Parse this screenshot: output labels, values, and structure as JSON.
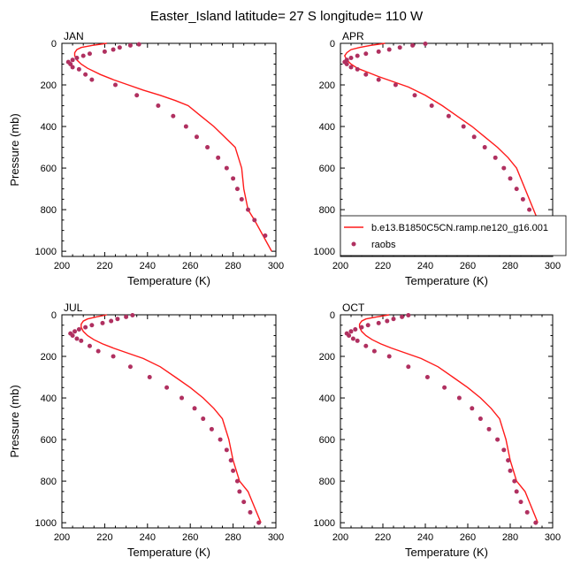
{
  "title": "Easter_Island  latitude= 27 S longitude= 110 W",
  "legend": {
    "model_label": "b.e13.B1850C5CN.ramp.ne120_g16.001",
    "obs_label": "raobs",
    "placement": "lower-right of APR panel"
  },
  "colors": {
    "model": "#ff1a1a",
    "obs": "#b03060"
  },
  "chart_data": [
    {
      "type": "line",
      "title": "JAN",
      "xlabel": "Temperature (K)",
      "ylabel": "Pressure (mb)",
      "xlim": [
        200,
        300
      ],
      "ylim": [
        1025,
        0
      ],
      "y_inverted": true,
      "xticks": [
        200,
        220,
        240,
        260,
        280,
        300
      ],
      "yticks": [
        0,
        200,
        400,
        600,
        800,
        1000
      ],
      "series": [
        {
          "name": "b.e13.B1850C5CN.ramp.ne120_g16.001",
          "kind": "line",
          "x": [
            221,
            214,
            209,
            207,
            206,
            206,
            207,
            209,
            212,
            218,
            224,
            231,
            238,
            246,
            253,
            259,
            265,
            271,
            276,
            281,
            284,
            285,
            287,
            290,
            294,
            298
          ],
          "y": [
            0,
            10,
            20,
            30,
            45,
            60,
            80,
            100,
            120,
            150,
            175,
            200,
            225,
            250,
            275,
            300,
            350,
            400,
            450,
            500,
            600,
            700,
            800,
            850,
            925,
            1000
          ]
        },
        {
          "name": "raobs",
          "kind": "scatter",
          "x": [
            236,
            232,
            227,
            224,
            220,
            213,
            210,
            207,
            205,
            203,
            204,
            205,
            208,
            211,
            214,
            225,
            235,
            245,
            252,
            258,
            263,
            268,
            273,
            277,
            280,
            282,
            284,
            287,
            290,
            295
          ],
          "y": [
            5,
            10,
            20,
            30,
            40,
            50,
            60,
            70,
            80,
            90,
            100,
            115,
            125,
            150,
            175,
            200,
            250,
            300,
            350,
            400,
            450,
            500,
            550,
            600,
            650,
            700,
            750,
            800,
            850,
            925
          ]
        }
      ]
    },
    {
      "type": "line",
      "title": "APR",
      "xlabel": "Temperature (K)",
      "ylabel": "",
      "xlim": [
        200,
        300
      ],
      "ylim": [
        1025,
        0
      ],
      "y_inverted": true,
      "xticks": [
        200,
        220,
        240,
        260,
        280,
        300
      ],
      "yticks": [
        0,
        200,
        400,
        600,
        800,
        1000
      ],
      "series": [
        {
          "name": "b.e13.B1850C5CN.ramp.ne120_g16.001",
          "kind": "line",
          "x": [
            221,
            214,
            209,
            205,
            203,
            202,
            203,
            205,
            208,
            213,
            218,
            225,
            232,
            240,
            248,
            255,
            262,
            268,
            274,
            279,
            283,
            287,
            291,
            295,
            299
          ],
          "y": [
            0,
            10,
            20,
            30,
            45,
            60,
            80,
            100,
            120,
            140,
            160,
            185,
            210,
            250,
            300,
            350,
            400,
            450,
            500,
            550,
            600,
            700,
            800,
            900,
            1000
          ]
        },
        {
          "name": "raobs",
          "kind": "scatter",
          "x": [
            240,
            234,
            228,
            223,
            218,
            212,
            208,
            205,
            203,
            202,
            203,
            205,
            208,
            212,
            218,
            226,
            235,
            243,
            251,
            258,
            263,
            268,
            273,
            277,
            280,
            283,
            286,
            289,
            293,
            297
          ],
          "y": [
            2,
            10,
            20,
            30,
            40,
            50,
            60,
            70,
            80,
            90,
            100,
            115,
            125,
            150,
            175,
            200,
            250,
            300,
            350,
            400,
            450,
            500,
            550,
            600,
            650,
            700,
            750,
            800,
            850,
            950
          ]
        }
      ]
    },
    {
      "type": "line",
      "title": "JUL",
      "xlabel": "Temperature (K)",
      "ylabel": "Pressure (mb)",
      "xlim": [
        200,
        300
      ],
      "ylim": [
        1025,
        0
      ],
      "y_inverted": true,
      "xticks": [
        200,
        220,
        240,
        260,
        280,
        300
      ],
      "yticks": [
        0,
        200,
        400,
        600,
        800,
        1000
      ],
      "series": [
        {
          "name": "b.e13.B1850C5CN.ramp.ne120_g16.001",
          "kind": "line",
          "x": [
            221,
            216,
            212,
            210,
            209,
            209,
            210,
            212,
            215,
            219,
            224,
            231,
            238,
            246,
            253,
            260,
            266,
            271,
            275,
            278,
            280,
            283,
            287,
            290,
            293
          ],
          "y": [
            0,
            10,
            20,
            30,
            45,
            60,
            80,
            100,
            120,
            140,
            160,
            185,
            210,
            250,
            300,
            350,
            400,
            450,
            500,
            600,
            700,
            800,
            850,
            925,
            1000
          ]
        },
        {
          "name": "raobs",
          "kind": "scatter",
          "x": [
            233,
            230,
            226,
            223,
            219,
            214,
            211,
            208,
            206,
            204,
            205,
            207,
            209,
            213,
            217,
            224,
            232,
            241,
            249,
            256,
            262,
            266,
            270,
            274,
            277,
            279,
            280,
            282,
            283,
            285,
            288,
            292
          ],
          "y": [
            2,
            10,
            20,
            30,
            40,
            50,
            60,
            70,
            80,
            90,
            100,
            115,
            125,
            150,
            175,
            200,
            250,
            300,
            350,
            400,
            450,
            500,
            550,
            600,
            650,
            700,
            750,
            800,
            850,
            900,
            950,
            1000
          ]
        }
      ]
    },
    {
      "type": "line",
      "title": "OCT",
      "xlabel": "Temperature (K)",
      "ylabel": "",
      "xlim": [
        200,
        300
      ],
      "ylim": [
        1025,
        0
      ],
      "y_inverted": true,
      "xticks": [
        200,
        220,
        240,
        260,
        280,
        300
      ],
      "yticks": [
        0,
        200,
        400,
        600,
        800,
        1000
      ],
      "series": [
        {
          "name": "b.e13.B1850C5CN.ramp.ne120_g16.001",
          "kind": "line",
          "x": [
            223,
            217,
            212,
            210,
            209,
            209,
            210,
            212,
            215,
            219,
            224,
            231,
            238,
            246,
            253,
            260,
            266,
            271,
            275,
            278,
            280,
            283,
            287,
            290,
            293
          ],
          "y": [
            0,
            10,
            20,
            30,
            45,
            60,
            80,
            100,
            120,
            140,
            160,
            185,
            210,
            250,
            300,
            350,
            400,
            450,
            500,
            600,
            700,
            800,
            850,
            925,
            1000
          ]
        },
        {
          "name": "raobs",
          "kind": "scatter",
          "x": [
            232,
            229,
            225,
            222,
            218,
            213,
            210,
            207,
            205,
            203,
            204,
            206,
            208,
            212,
            216,
            223,
            232,
            241,
            249,
            256,
            262,
            266,
            270,
            274,
            277,
            279,
            280,
            282,
            283,
            285,
            288,
            292
          ],
          "y": [
            2,
            10,
            20,
            30,
            40,
            50,
            60,
            70,
            80,
            90,
            100,
            115,
            125,
            150,
            175,
            200,
            250,
            300,
            350,
            400,
            450,
            500,
            550,
            600,
            650,
            700,
            750,
            800,
            850,
            900,
            950,
            1000
          ]
        }
      ]
    }
  ]
}
